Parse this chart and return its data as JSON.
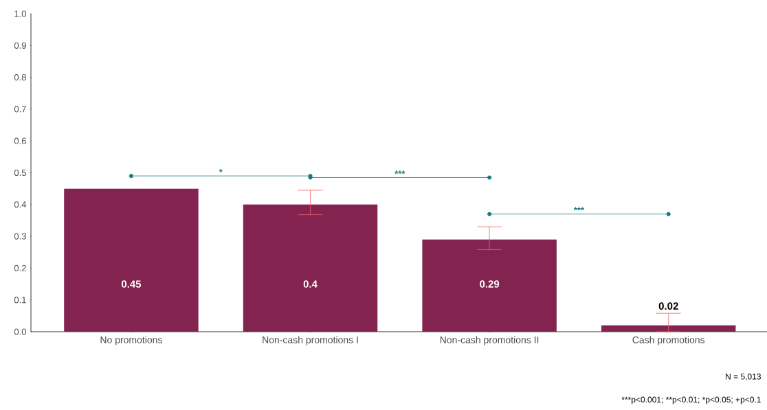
{
  "chart_data": {
    "type": "bar",
    "categories": [
      "No promotions",
      "Non-cash promotions I",
      "Non-cash promotions II",
      "Cash promotions"
    ],
    "values": [
      0.45,
      0.4,
      0.29,
      0.02
    ],
    "color": "#832350",
    "errors": [
      null,
      [
        0.368,
        0.445
      ],
      [
        0.258,
        0.33
      ],
      [
        0.0,
        0.058
      ]
    ],
    "data_labels": true,
    "ylim": [
      0,
      1
    ],
    "yticks": [
      {
        "value": 0,
        "label": "0.0"
      },
      0.1,
      0.2,
      0.3,
      0.4,
      0.5,
      0.6,
      0.7,
      0.8,
      0.9,
      {
        "value": 1,
        "label": "1.0"
      }
    ],
    "grid": false,
    "annotations": [
      "*",
      "***",
      "***",
      "N = 5,013",
      "***p<0.001; **p<0.01; *p<0.05; +p<0.1"
    ]
  }
}
